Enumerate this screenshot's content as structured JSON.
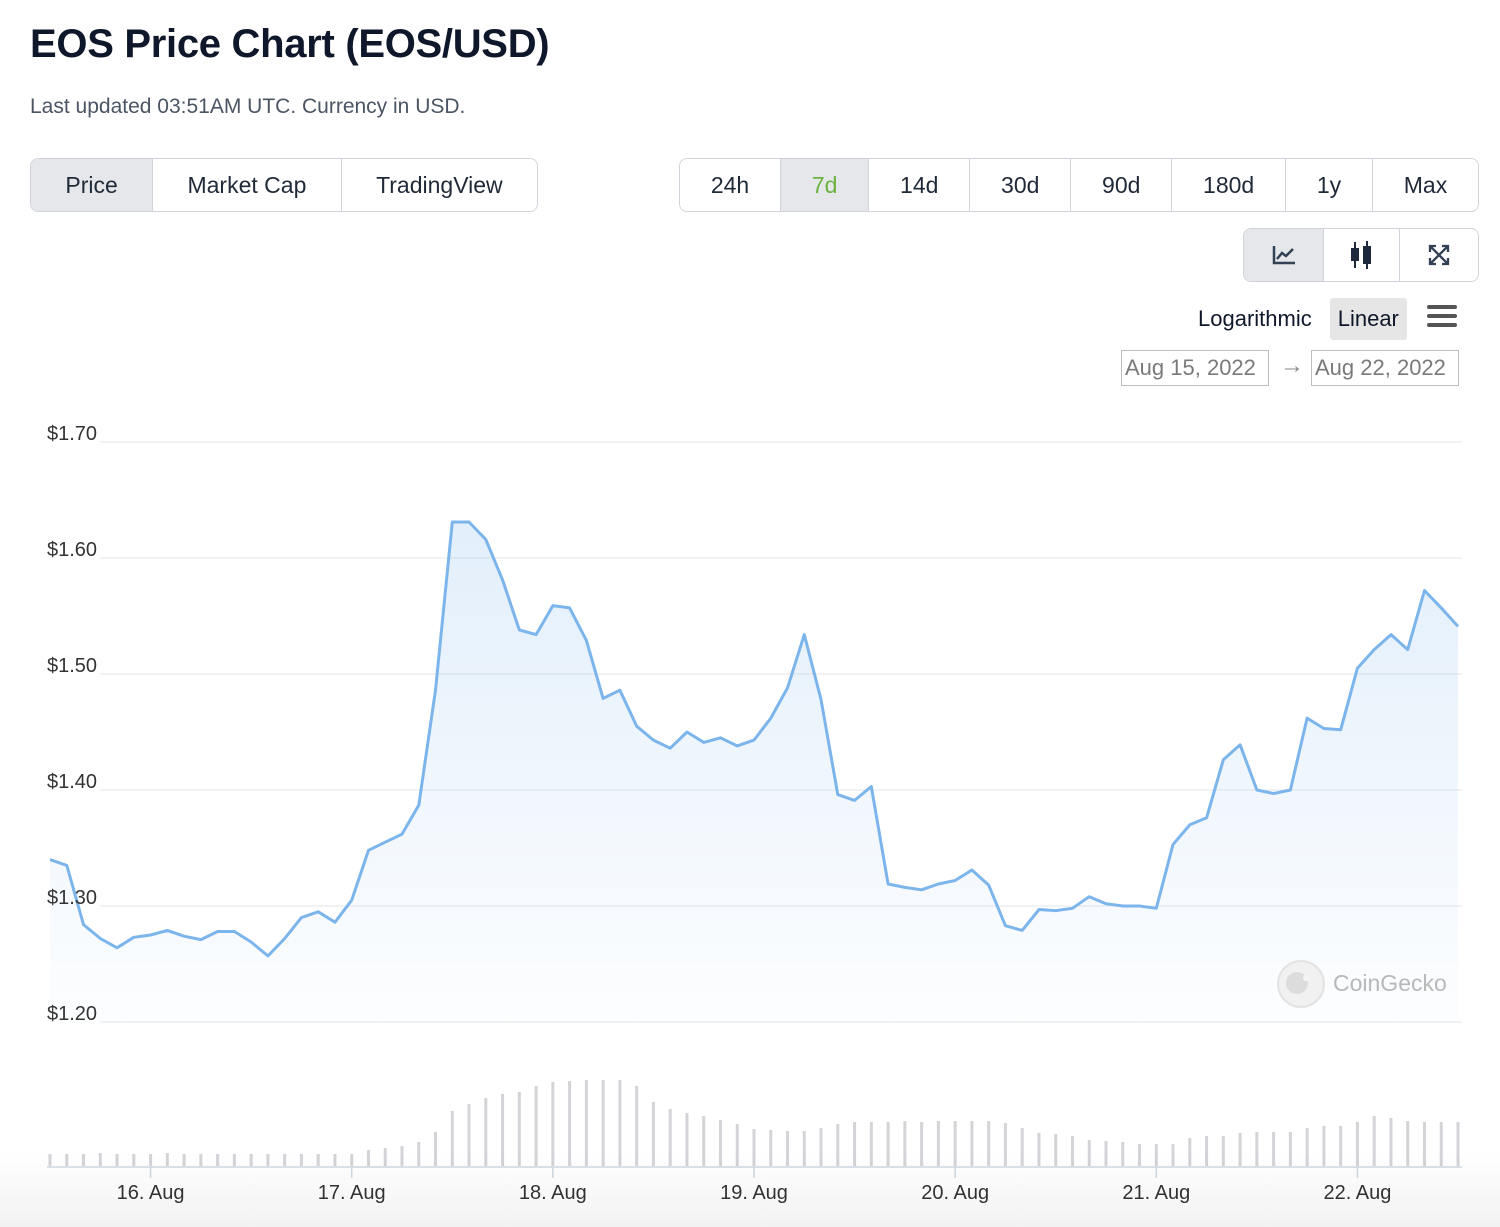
{
  "header": {
    "title": "EOS Price Chart (EOS/USD)",
    "subtitle": "Last updated 03:51AM UTC. Currency in USD."
  },
  "tabs": {
    "items": [
      "Price",
      "Market Cap",
      "TradingView"
    ],
    "active": 0
  },
  "ranges": {
    "items": [
      "24h",
      "7d",
      "14d",
      "30d",
      "90d",
      "180d",
      "1y",
      "Max"
    ],
    "active": 1
  },
  "scale": {
    "items": [
      "Logarithmic",
      "Linear"
    ],
    "active": 1
  },
  "date_range": {
    "from": "Aug 15, 2022",
    "arrow": "→",
    "to": "Aug 22, 2022"
  },
  "watermark": "CoinGecko",
  "chart_data": {
    "type": "area",
    "categories": [
      null,
      null,
      null,
      null,
      null,
      null,
      "16. Aug",
      null,
      null,
      null,
      null,
      null,
      null,
      null,
      null,
      null,
      null,
      null,
      "17. Aug",
      null,
      null,
      null,
      null,
      null,
      null,
      null,
      null,
      null,
      null,
      null,
      "18. Aug",
      null,
      null,
      null,
      null,
      null,
      null,
      null,
      null,
      null,
      null,
      null,
      "19. Aug",
      null,
      null,
      null,
      null,
      null,
      null,
      null,
      null,
      null,
      null,
      null,
      "20. Aug",
      null,
      null,
      null,
      null,
      null,
      null,
      null,
      null,
      null,
      null,
      null,
      "21. Aug",
      null,
      null,
      null,
      null,
      null,
      null,
      null,
      null,
      null,
      null,
      null,
      "22. Aug",
      null,
      null,
      null,
      null,
      null,
      null
    ],
    "values": [
      1.34,
      1.335,
      1.284,
      1.272,
      1.264,
      1.273,
      1.275,
      1.279,
      1.274,
      1.271,
      1.278,
      1.278,
      1.269,
      1.257,
      1.272,
      1.29,
      1.295,
      1.286,
      1.305,
      1.348,
      1.355,
      1.362,
      1.387,
      1.486,
      1.631,
      1.631,
      1.616,
      1.581,
      1.538,
      1.534,
      1.559,
      1.557,
      1.529,
      1.479,
      1.486,
      1.455,
      1.443,
      1.436,
      1.45,
      1.441,
      1.445,
      1.438,
      1.443,
      1.462,
      1.488,
      1.534,
      1.478,
      1.396,
      1.391,
      1.403,
      1.319,
      1.316,
      1.314,
      1.319,
      1.322,
      1.331,
      1.318,
      1.283,
      1.279,
      1.297,
      1.296,
      1.298,
      1.308,
      1.302,
      1.3,
      1.3,
      1.298,
      1.353,
      1.37,
      1.376,
      1.426,
      1.439,
      1.4,
      1.397,
      1.4,
      1.462,
      1.453,
      1.452,
      1.505,
      1.521,
      1.534,
      1.521,
      1.572,
      1.557,
      1.541
    ],
    "volume": [
      12,
      12,
      12,
      13,
      12,
      12,
      12,
      13,
      12,
      12,
      12,
      12,
      12,
      12,
      12,
      12,
      12,
      12,
      12,
      16,
      18,
      20,
      24,
      34,
      55,
      62,
      68,
      72,
      74,
      80,
      84,
      85,
      86,
      86,
      86,
      80,
      64,
      57,
      53,
      50,
      46,
      42,
      37,
      36,
      35,
      35,
      38,
      42,
      44,
      44,
      44,
      45,
      44,
      45,
      45,
      45,
      45,
      43,
      38,
      33,
      32,
      30,
      26,
      25,
      24,
      22,
      22,
      22,
      28,
      30,
      30,
      33,
      34,
      34,
      34,
      38,
      40,
      40,
      44,
      50,
      48,
      45,
      44,
      44,
      44
    ],
    "color": "#7cb5ec",
    "volume_color": "#d4d4d8",
    "ylim": [
      1.2,
      1.7
    ],
    "yticks": [
      {
        "value": 1.2,
        "label": "$1.20"
      },
      {
        "value": 1.3,
        "label": "$1.30"
      },
      {
        "value": 1.4,
        "label": "$1.40"
      },
      {
        "value": 1.5,
        "label": "$1.50"
      },
      {
        "value": 1.6,
        "label": "$1.60"
      },
      {
        "value": 1.7,
        "label": "$1.70"
      }
    ],
    "grid": true
  }
}
